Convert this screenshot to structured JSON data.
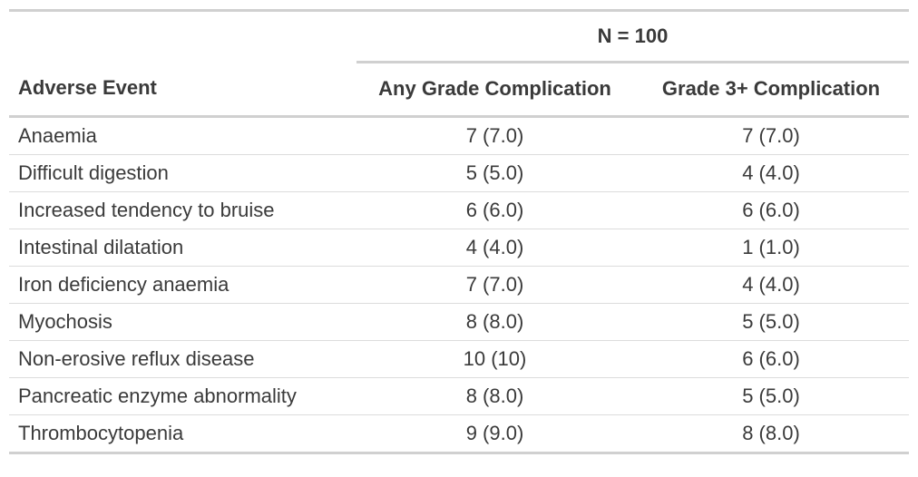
{
  "colors": {
    "text": "#3a3a3a",
    "rule_thick": "#d0d0d0",
    "rule_thin": "#dcdcdc",
    "background": "#ffffff"
  },
  "chart_data": {
    "type": "table",
    "spanner": {
      "label": "N = 100",
      "spans_columns": [
        "Any Grade Complication",
        "Grade 3+ Complication"
      ]
    },
    "columns": [
      "Adverse Event",
      "Any Grade Complication",
      "Grade 3+ Complication"
    ],
    "value_format": "n (%)",
    "rows": [
      {
        "event": "Anaemia",
        "any_grade": "7 (7.0)",
        "grade3plus": "7 (7.0)"
      },
      {
        "event": "Difficult digestion",
        "any_grade": "5 (5.0)",
        "grade3plus": "4 (4.0)"
      },
      {
        "event": "Increased tendency to bruise",
        "any_grade": "6 (6.0)",
        "grade3plus": "6 (6.0)"
      },
      {
        "event": "Intestinal dilatation",
        "any_grade": "4 (4.0)",
        "grade3plus": "1 (1.0)"
      },
      {
        "event": "Iron deficiency anaemia",
        "any_grade": "7 (7.0)",
        "grade3plus": "4 (4.0)"
      },
      {
        "event": "Myochosis",
        "any_grade": "8 (8.0)",
        "grade3plus": "5 (5.0)"
      },
      {
        "event": "Non-erosive reflux disease",
        "any_grade": "10 (10)",
        "grade3plus": "6 (6.0)"
      },
      {
        "event": "Pancreatic enzyme abnormality",
        "any_grade": "8 (8.0)",
        "grade3plus": "5 (5.0)"
      },
      {
        "event": "Thrombocytopenia",
        "any_grade": "9 (9.0)",
        "grade3plus": "8 (8.0)"
      }
    ],
    "numeric_series": [
      {
        "name": "Any Grade Complication n",
        "values": [
          7,
          5,
          6,
          4,
          7,
          8,
          10,
          8,
          9
        ]
      },
      {
        "name": "Grade 3+ Complication n",
        "values": [
          7,
          4,
          6,
          1,
          4,
          5,
          6,
          5,
          8
        ]
      }
    ],
    "n_total": 100
  }
}
